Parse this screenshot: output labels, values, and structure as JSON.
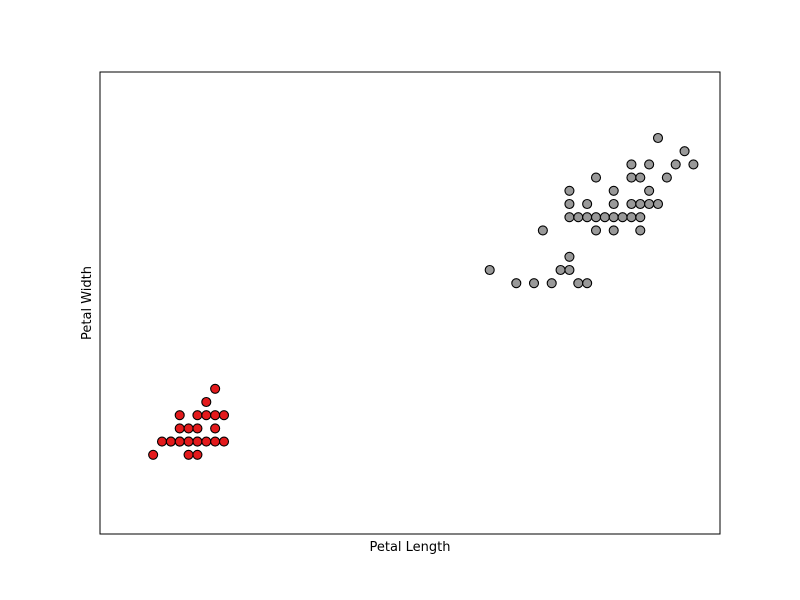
{
  "chart_data": {
    "type": "scatter",
    "title": "",
    "xlabel": "Petal Length",
    "ylabel": "Petal Width",
    "xlim": [
      0.5,
      7.5
    ],
    "ylim": [
      -0.5,
      3.0
    ],
    "grid": false,
    "xticks": [],
    "yticks": [],
    "series": [
      {
        "color": "#e31a1c",
        "points": [
          [
            1.1,
            0.1
          ],
          [
            1.2,
            0.2
          ],
          [
            1.3,
            0.2
          ],
          [
            1.4,
            0.2
          ],
          [
            1.4,
            0.2
          ],
          [
            1.4,
            0.3
          ],
          [
            1.4,
            0.4
          ],
          [
            1.5,
            0.1
          ],
          [
            1.5,
            0.2
          ],
          [
            1.5,
            0.3
          ],
          [
            1.6,
            0.1
          ],
          [
            1.6,
            0.2
          ],
          [
            1.6,
            0.2
          ],
          [
            1.6,
            0.4
          ],
          [
            1.7,
            0.2
          ],
          [
            1.7,
            0.4
          ],
          [
            1.7,
            0.5
          ],
          [
            1.8,
            0.2
          ],
          [
            1.8,
            0.3
          ],
          [
            1.8,
            0.4
          ],
          [
            1.8,
            0.6
          ],
          [
            1.9,
            0.2
          ],
          [
            1.9,
            0.4
          ],
          [
            1.3,
            0.2
          ],
          [
            1.5,
            0.2
          ],
          [
            1.4,
            0.2
          ],
          [
            1.6,
            0.3
          ]
        ]
      },
      {
        "color": "#999999",
        "points": [
          [
            4.9,
            1.5
          ],
          [
            5.2,
            1.4
          ],
          [
            5.4,
            1.4
          ],
          [
            5.6,
            1.4
          ],
          [
            5.9,
            1.4
          ],
          [
            6.0,
            1.4
          ],
          [
            5.7,
            1.5
          ],
          [
            5.8,
            1.5
          ],
          [
            5.8,
            1.6
          ],
          [
            5.5,
            1.8
          ],
          [
            5.8,
            1.9
          ],
          [
            5.9,
            1.9
          ],
          [
            6.0,
            1.9
          ],
          [
            6.1,
            1.9
          ],
          [
            6.2,
            1.9
          ],
          [
            6.3,
            1.9
          ],
          [
            6.4,
            1.9
          ],
          [
            6.5,
            1.9
          ],
          [
            6.6,
            1.9
          ],
          [
            5.8,
            2.0
          ],
          [
            5.8,
            2.1
          ],
          [
            6.1,
            1.8
          ],
          [
            6.3,
            1.8
          ],
          [
            6.6,
            1.8
          ],
          [
            6.3,
            2.0
          ],
          [
            6.5,
            2.0
          ],
          [
            6.6,
            2.0
          ],
          [
            6.7,
            2.0
          ],
          [
            6.8,
            2.0
          ],
          [
            6.3,
            2.1
          ],
          [
            6.1,
            2.2
          ],
          [
            6.5,
            2.2
          ],
          [
            6.6,
            2.2
          ],
          [
            6.7,
            2.1
          ],
          [
            6.9,
            2.2
          ],
          [
            6.5,
            2.3
          ],
          [
            6.7,
            2.3
          ],
          [
            7.0,
            2.3
          ],
          [
            6.8,
            2.5
          ],
          [
            7.1,
            2.4
          ],
          [
            7.2,
            2.3
          ],
          [
            6.0,
            2.0
          ]
        ]
      }
    ]
  }
}
